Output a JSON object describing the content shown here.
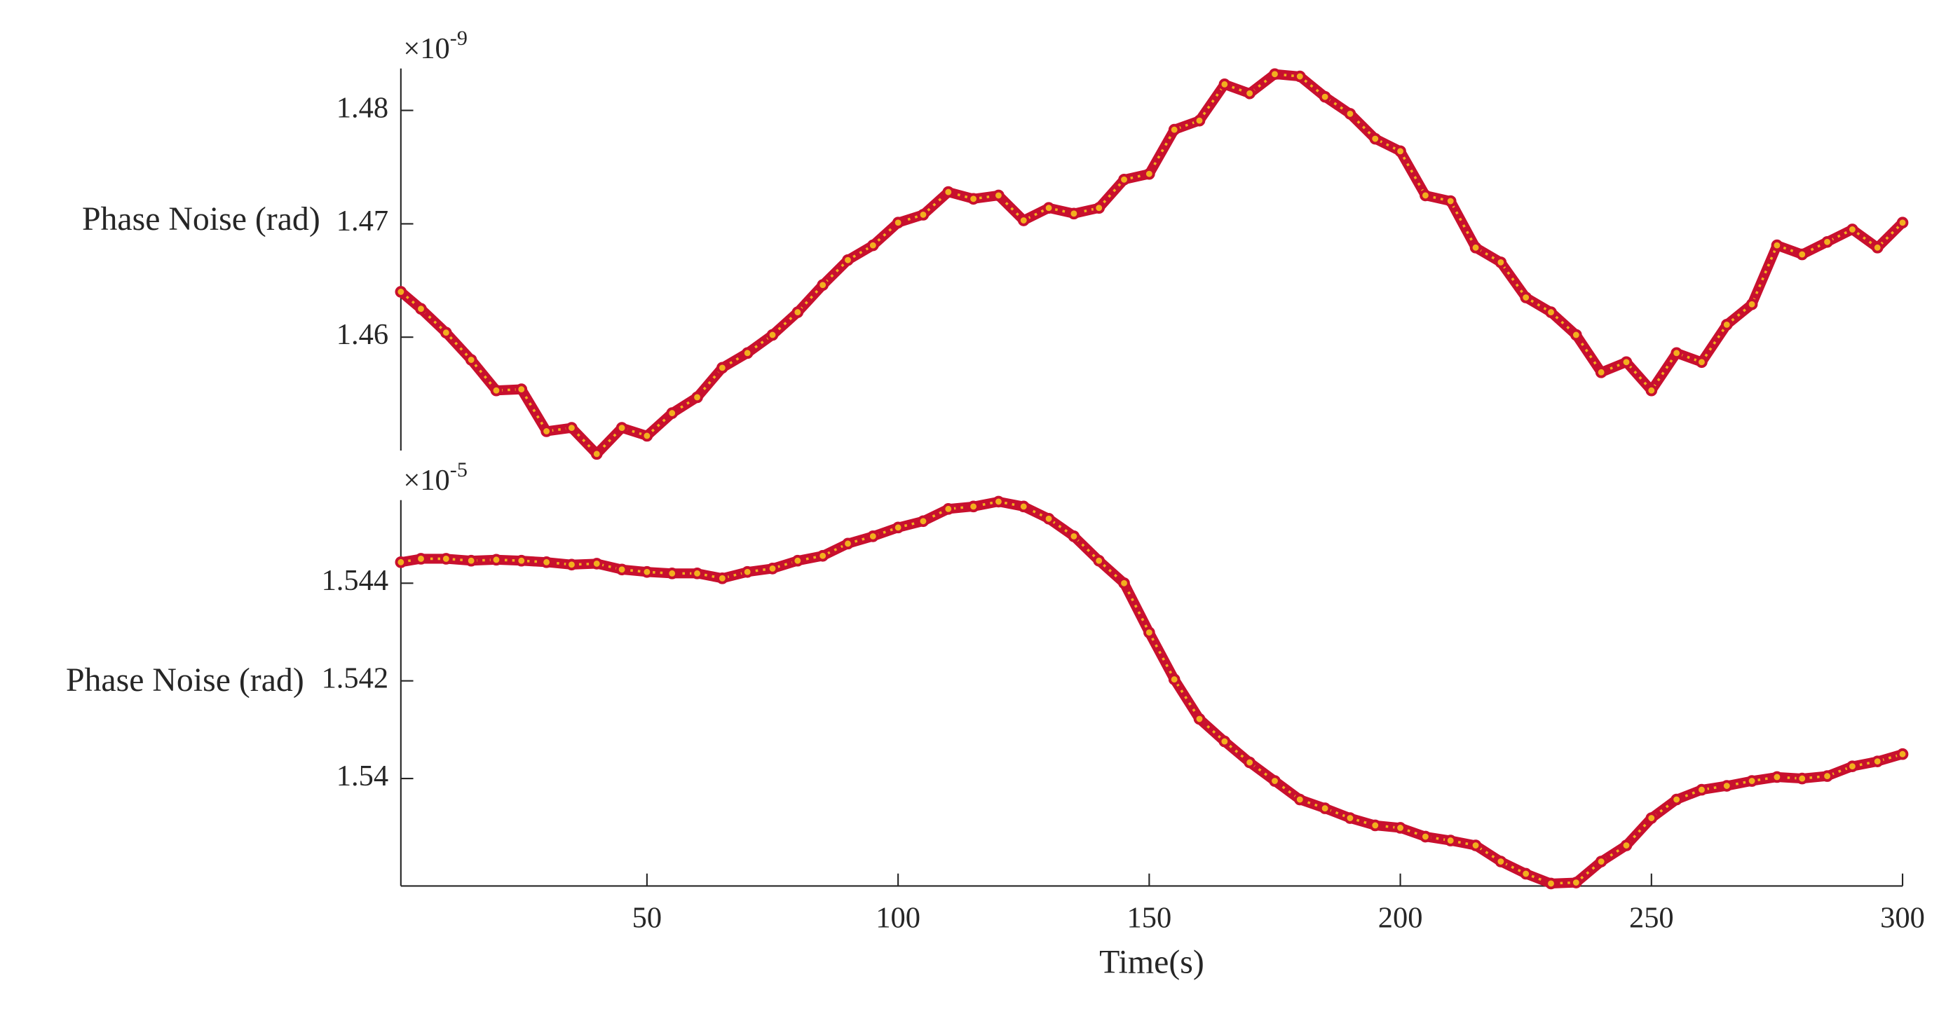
{
  "chart_data": [
    {
      "type": "line",
      "ylabel": "Phase Noise (rad)",
      "y_multiplier": "×10",
      "y_exponent": "-9",
      "marker_edge_color": "#c8102e",
      "marker_face_color": "#f2b01e",
      "xlim": [
        1,
        300
      ],
      "ylim": [
        1.45,
        1.4837
      ],
      "yticks": [
        1.46,
        1.47,
        1.48
      ],
      "x": [
        1,
        5,
        10,
        15,
        20,
        25,
        30,
        35,
        40,
        45,
        50,
        55,
        60,
        65,
        70,
        75,
        80,
        85,
        90,
        95,
        100,
        105,
        110,
        115,
        120,
        125,
        130,
        135,
        140,
        145,
        150,
        155,
        160,
        165,
        170,
        175,
        180,
        185,
        190,
        195,
        200,
        205,
        210,
        215,
        220,
        225,
        230,
        235,
        240,
        245,
        250,
        255,
        260,
        265,
        270,
        275,
        280,
        285,
        290,
        295,
        300
      ],
      "series": [
        {
          "values": [
            1.464,
            1.4625,
            1.4604,
            1.458,
            1.4553,
            1.4554,
            1.4517,
            1.452,
            1.4497,
            1.452,
            1.4513,
            1.4533,
            1.4547,
            1.4573,
            1.4586,
            1.4602,
            1.4622,
            1.4646,
            1.4668,
            1.4681,
            1.4701,
            1.4708,
            1.4728,
            1.4722,
            1.4725,
            1.4703,
            1.4714,
            1.4709,
            1.4714,
            1.4739,
            1.4744,
            1.4783,
            1.4791,
            1.4823,
            1.4815,
            1.4832,
            1.483,
            1.4812,
            1.4797,
            1.4775,
            1.4764,
            1.4725,
            1.472,
            1.4679,
            1.4666,
            1.4635,
            1.4622,
            1.4602,
            1.4569,
            1.4578,
            1.4553,
            1.4586,
            1.4578,
            1.4611,
            1.4629,
            1.4681,
            1.4673,
            1.4684,
            1.4695,
            1.4679,
            1.4701
          ]
        }
      ]
    },
    {
      "type": "line",
      "ylabel": "Phase Noise (rad)",
      "y_multiplier": "×10",
      "y_exponent": "-5",
      "xlabel": "Time(s)",
      "marker_edge_color": "#c8102e",
      "marker_face_color": "#f2b01e",
      "xlim": [
        1,
        300
      ],
      "xticks": [
        50,
        100,
        150,
        200,
        250,
        300
      ],
      "ylim": [
        1.5378,
        1.5457
      ],
      "yticks": [
        1.54,
        1.542,
        1.544
      ],
      "x": [
        1,
        5,
        10,
        15,
        20,
        25,
        30,
        35,
        40,
        45,
        50,
        55,
        60,
        65,
        70,
        75,
        80,
        85,
        90,
        95,
        100,
        105,
        110,
        115,
        120,
        125,
        130,
        135,
        140,
        145,
        150,
        155,
        160,
        165,
        170,
        175,
        180,
        185,
        190,
        195,
        200,
        205,
        210,
        215,
        220,
        225,
        230,
        235,
        240,
        245,
        250,
        255,
        260,
        265,
        270,
        275,
        280,
        285,
        290,
        295,
        300
      ],
      "series": [
        {
          "values": [
            1.54443,
            1.5445,
            1.5445,
            1.54446,
            1.54448,
            1.54446,
            1.54443,
            1.54438,
            1.5444,
            1.54428,
            1.54423,
            1.5442,
            1.5442,
            1.5441,
            1.54423,
            1.5443,
            1.54446,
            1.54456,
            1.54481,
            1.54496,
            1.54514,
            1.54527,
            1.54552,
            1.54557,
            1.54567,
            1.54557,
            1.54532,
            1.54496,
            1.54446,
            1.544,
            1.54299,
            1.54203,
            1.54122,
            1.54076,
            1.54033,
            1.53995,
            1.53957,
            1.53939,
            1.53919,
            1.53904,
            1.53899,
            1.53881,
            1.53873,
            1.53863,
            1.5383,
            1.53805,
            1.53785,
            1.53787,
            1.5383,
            1.53863,
            1.53919,
            1.53957,
            1.53977,
            1.53985,
            1.53995,
            1.54003,
            1.54,
            1.54005,
            1.54025,
            1.54035,
            1.5405
          ]
        }
      ]
    }
  ]
}
